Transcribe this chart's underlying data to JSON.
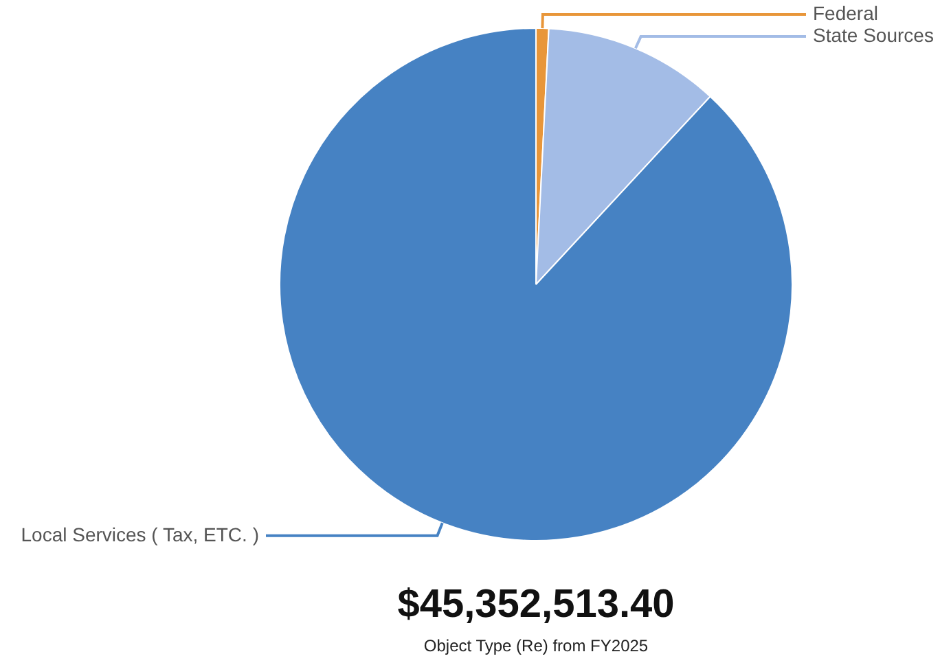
{
  "chart_data": {
    "type": "pie",
    "title": "$45,352,513.40",
    "subtitle": "Object Type (Re) from FY2025",
    "categories": [
      "Federal",
      "State Sources",
      "Local Services ( Tax, ETC. )"
    ],
    "values": [
      0.8,
      11.1,
      88.1
    ],
    "colors": [
      "#e8963a",
      "#a3bce6",
      "#4682c3"
    ],
    "legend": false
  }
}
